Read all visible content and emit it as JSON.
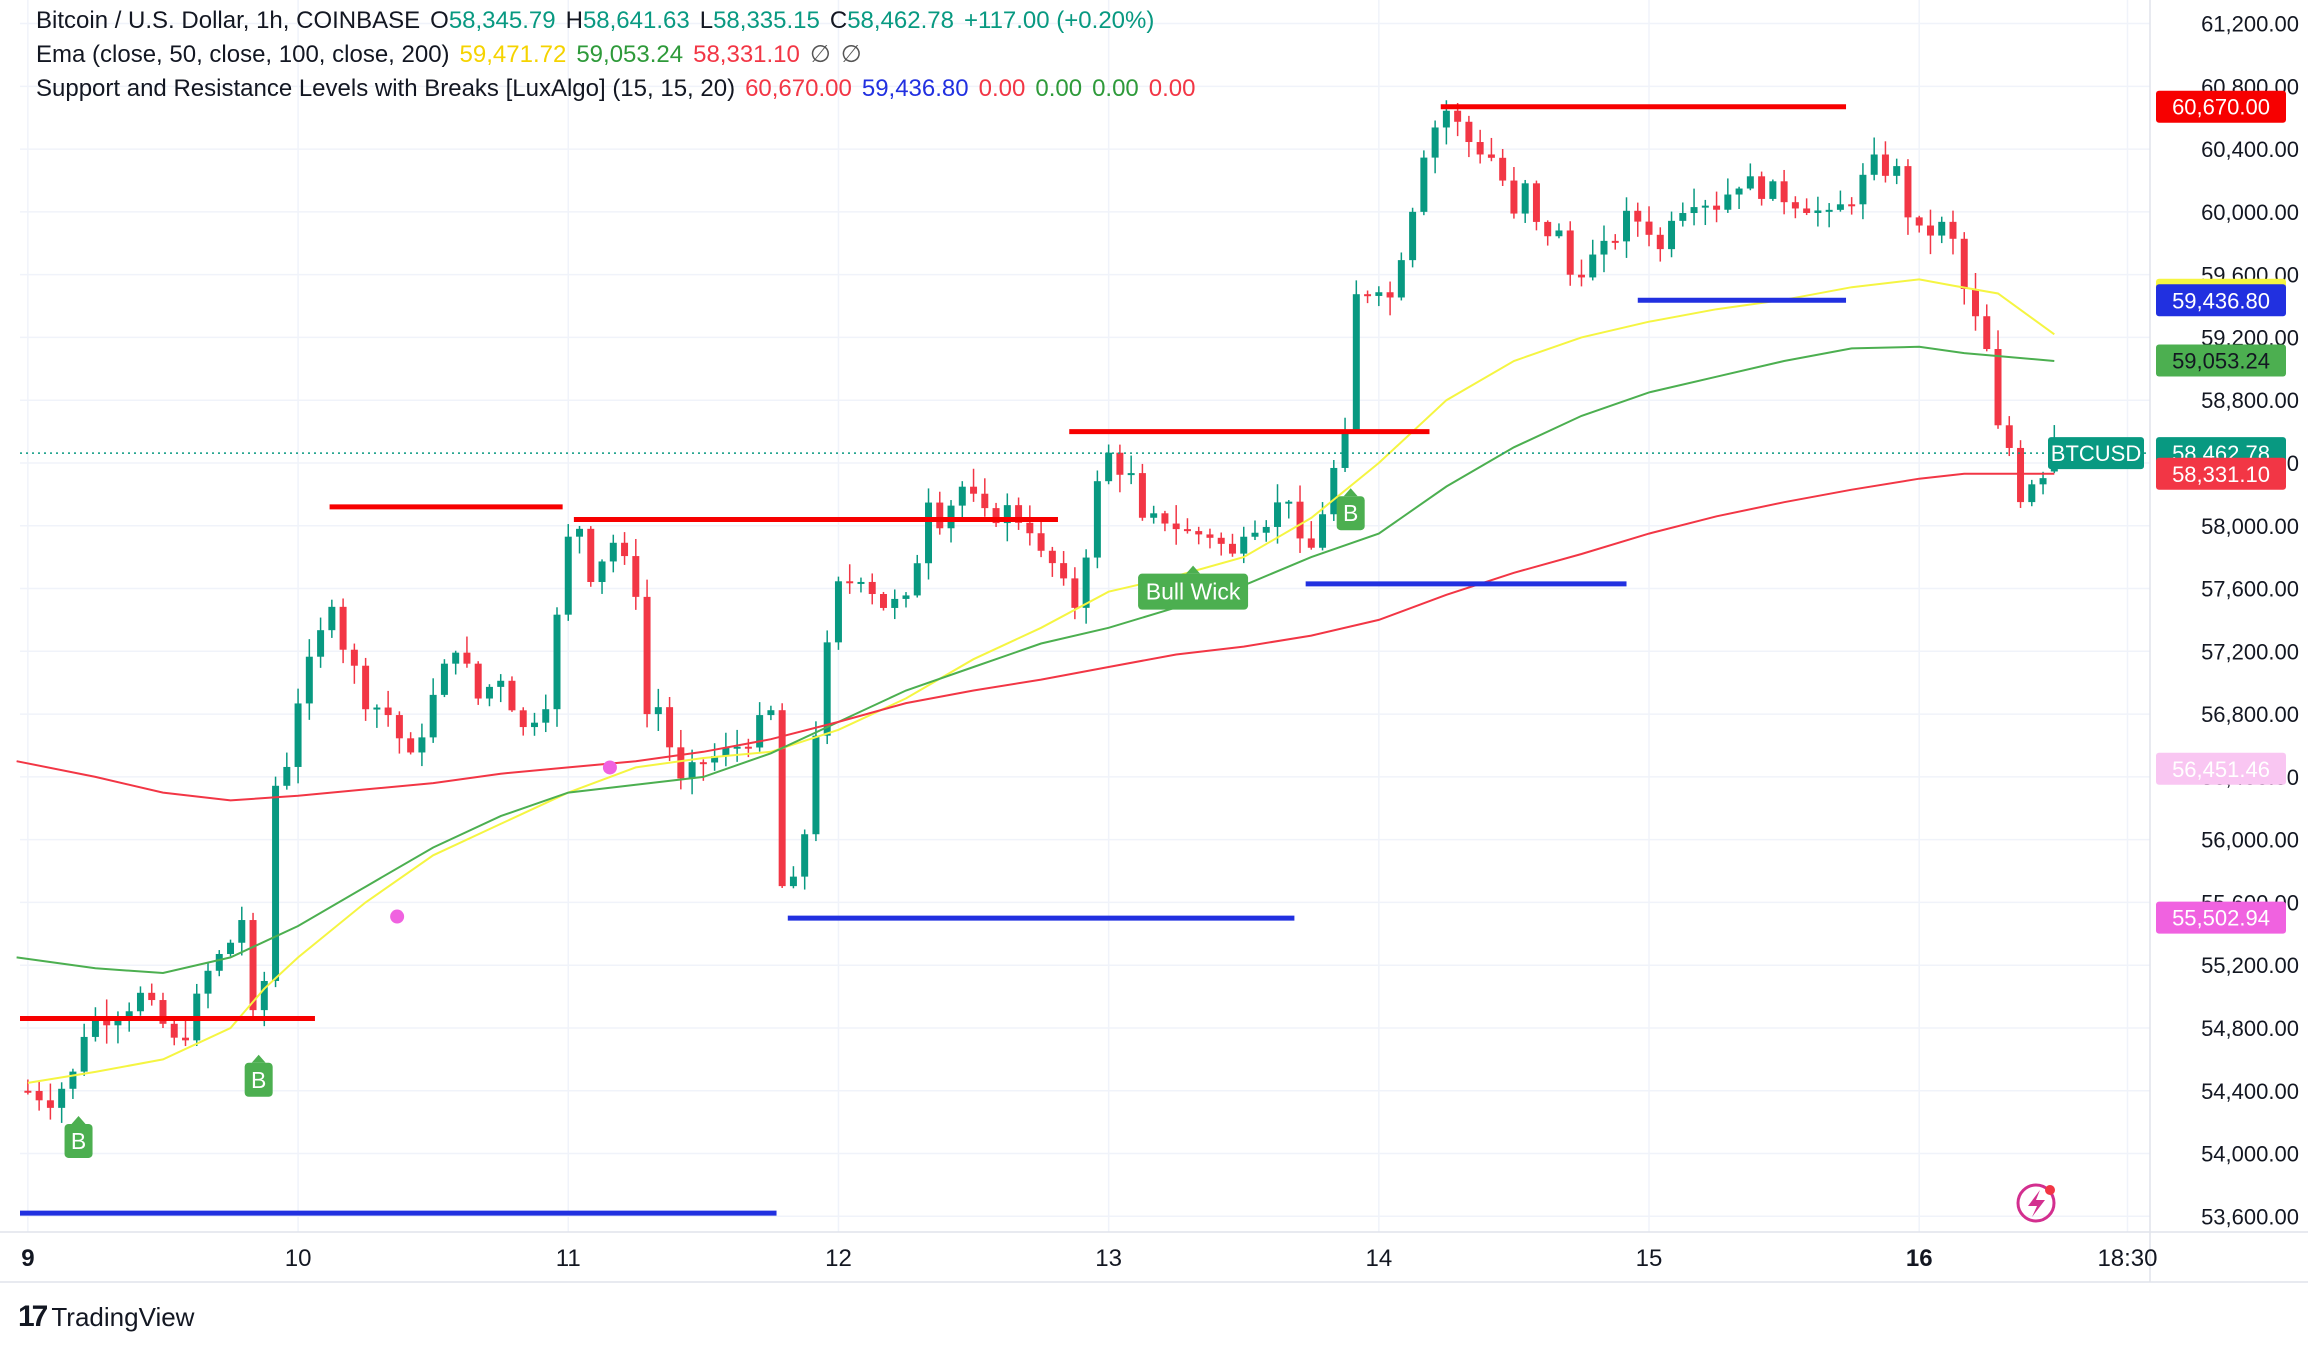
{
  "legend": {
    "symbol": "Bitcoin / U.S. Dollar, 1h, COINBASE",
    "ohlc": {
      "o_label": "O",
      "o_value": "58,345.79",
      "h_label": "H",
      "h_value": "58,641.63",
      "l_label": "L",
      "l_value": "58,335.15",
      "c_label": "C",
      "c_value": "58,462.78",
      "change": "+117.00 (+0.20%)"
    },
    "ema": {
      "label": "Ema (close, 50, close, 100, close, 200)",
      "v50": "59,471.72",
      "v100": "59,053.24",
      "v200": "58,331.10",
      "na1": "∅",
      "na2": "∅"
    },
    "sr": {
      "label": "Support and Resistance Levels with Breaks [LuxAlgo] (15, 15, 20)",
      "resistance": "60,670.00",
      "support": "59,436.80",
      "v3": "0.00",
      "v4": "0.00",
      "v5": "0.00",
      "v6": "0.00"
    }
  },
  "footer": {
    "logo": "TradingView"
  },
  "colors": {
    "up": "#089981",
    "down": "#f23645",
    "ema50": "#f5f542",
    "ema100": "#4caf50",
    "ema200": "#f23645",
    "resistance": "#f70000",
    "support": "#2130e0",
    "marker": "#4caf50",
    "pink": "#f062e0"
  },
  "chart_data": {
    "type": "candlestick",
    "title": "Bitcoin / U.S. Dollar, 1h, COINBASE",
    "y_ticks": [
      "61,200.00",
      "60,800.00",
      "60,400.00",
      "60,000.00",
      "59,600.00",
      "59,200.00",
      "58,800.00",
      "58,400.00",
      "58,000.00",
      "57,600.00",
      "57,200.00",
      "56,800.00",
      "56,400.00",
      "56,000.00",
      "55,600.00",
      "55,200.00",
      "54,800.00",
      "54,400.00",
      "54,000.00",
      "53,600.00"
    ],
    "y_tick_values": [
      61200,
      60800,
      60400,
      60000,
      59600,
      59200,
      58800,
      58400,
      58000,
      57600,
      57200,
      56800,
      56400,
      56000,
      55600,
      55200,
      54800,
      54400,
      54000,
      53600
    ],
    "ylim": [
      53500,
      61350
    ],
    "x_tick_labels": [
      "9",
      "10",
      "11",
      "12",
      "13",
      "14",
      "15",
      "16",
      "18:30"
    ],
    "x_tick_bold": [
      true,
      false,
      false,
      false,
      false,
      false,
      false,
      true,
      false
    ],
    "x_tick_hours": [
      0,
      24,
      48,
      72,
      96,
      120,
      144,
      168,
      186.5
    ],
    "xlim_hours": [
      -0.7,
      188.5
    ],
    "last_price": 58462.78,
    "price_tags": [
      {
        "label": "60,670.00",
        "value": 60670.0,
        "color": "#f70000",
        "text_color": "#ffffff"
      },
      {
        "label": "59,471.72",
        "value": 59471.72,
        "color": "#f5f542",
        "text_color": "#131722"
      },
      {
        "label": "59,436.80",
        "value": 59436.8,
        "color": "#2130e0",
        "text_color": "#ffffff"
      },
      {
        "label": "59,053.24",
        "value": 59053.24,
        "color": "#4caf50",
        "text_color": "#131722"
      },
      {
        "label": "58,462.78",
        "value": 58462.78,
        "color": "#089981",
        "text_color": "#ffffff"
      },
      {
        "label": "58,331.10",
        "value": 58331.1,
        "color": "#f23645",
        "text_color": "#ffffff"
      },
      {
        "label": "56,451.46",
        "value": 56451.46,
        "color": "#f9c6f2",
        "text_color": "#ffffff"
      },
      {
        "label": "55,502.94",
        "value": 55502.94,
        "color": "#f062e0",
        "text_color": "#ffffff"
      }
    ],
    "symbol_tag": "BTCUSD",
    "ema_series": [
      {
        "period": 50,
        "color": "#f5f542",
        "points": [
          [
            0,
            54450
          ],
          [
            6,
            54520
          ],
          [
            12,
            54600
          ],
          [
            18,
            54800
          ],
          [
            21,
            55050
          ],
          [
            24,
            55250
          ],
          [
            30,
            55600
          ],
          [
            36,
            55900
          ],
          [
            42,
            56100
          ],
          [
            48,
            56300
          ],
          [
            54,
            56460
          ],
          [
            60,
            56520
          ],
          [
            66,
            56560
          ],
          [
            72,
            56700
          ],
          [
            78,
            56900
          ],
          [
            84,
            57150
          ],
          [
            90,
            57350
          ],
          [
            96,
            57580
          ],
          [
            102,
            57680
          ],
          [
            108,
            57800
          ],
          [
            114,
            58050
          ],
          [
            120,
            58400
          ],
          [
            126,
            58800
          ],
          [
            132,
            59050
          ],
          [
            138,
            59200
          ],
          [
            144,
            59300
          ],
          [
            150,
            59380
          ],
          [
            156,
            59440
          ],
          [
            162,
            59520
          ],
          [
            168,
            59570
          ],
          [
            171,
            59530
          ],
          [
            175,
            59480
          ],
          [
            180,
            59220
          ]
        ]
      },
      {
        "period": 100,
        "color": "#4caf50",
        "points": [
          [
            -1,
            55250
          ],
          [
            6,
            55180
          ],
          [
            12,
            55150
          ],
          [
            18,
            55250
          ],
          [
            24,
            55450
          ],
          [
            30,
            55700
          ],
          [
            36,
            55950
          ],
          [
            42,
            56150
          ],
          [
            48,
            56300
          ],
          [
            54,
            56350
          ],
          [
            60,
            56400
          ],
          [
            66,
            56550
          ],
          [
            72,
            56750
          ],
          [
            78,
            56950
          ],
          [
            84,
            57100
          ],
          [
            90,
            57250
          ],
          [
            96,
            57350
          ],
          [
            102,
            57480
          ],
          [
            108,
            57620
          ],
          [
            114,
            57800
          ],
          [
            120,
            57950
          ],
          [
            126,
            58250
          ],
          [
            132,
            58500
          ],
          [
            138,
            58700
          ],
          [
            144,
            58850
          ],
          [
            150,
            58950
          ],
          [
            156,
            59050
          ],
          [
            162,
            59130
          ],
          [
            168,
            59140
          ],
          [
            172,
            59100
          ],
          [
            180,
            59050
          ]
        ]
      },
      {
        "period": 200,
        "color": "#f23645",
        "points": [
          [
            -1,
            56500
          ],
          [
            6,
            56400
          ],
          [
            12,
            56300
          ],
          [
            18,
            56250
          ],
          [
            24,
            56280
          ],
          [
            30,
            56320
          ],
          [
            36,
            56360
          ],
          [
            42,
            56420
          ],
          [
            48,
            56460
          ],
          [
            54,
            56500
          ],
          [
            60,
            56560
          ],
          [
            66,
            56640
          ],
          [
            72,
            56750
          ],
          [
            78,
            56870
          ],
          [
            84,
            56950
          ],
          [
            90,
            57020
          ],
          [
            96,
            57100
          ],
          [
            102,
            57180
          ],
          [
            108,
            57230
          ],
          [
            114,
            57300
          ],
          [
            120,
            57400
          ],
          [
            126,
            57560
          ],
          [
            132,
            57700
          ],
          [
            138,
            57820
          ],
          [
            144,
            57950
          ],
          [
            150,
            58060
          ],
          [
            156,
            58150
          ],
          [
            162,
            58230
          ],
          [
            168,
            58300
          ],
          [
            172,
            58331
          ],
          [
            180,
            58331
          ]
        ]
      }
    ],
    "ema_cross_dots": [
      [
        32.8,
        55510
      ],
      [
        51.7,
        56460
      ]
    ],
    "resistance_levels": [
      {
        "x0": -0.7,
        "x1": 25.5,
        "y": 54860
      },
      {
        "x0": 26.8,
        "x1": 47.5,
        "y": 58120
      },
      {
        "x0": 48.5,
        "x1": 91.5,
        "y": 58040
      },
      {
        "x0": 92.5,
        "x1": 124.5,
        "y": 58600
      },
      {
        "x0": 125.5,
        "x1": 161.5,
        "y": 60670
      }
    ],
    "support_levels": [
      {
        "x0": -0.7,
        "x1": 66.5,
        "y": 53620
      },
      {
        "x0": 67.5,
        "x1": 112.5,
        "y": 55500
      },
      {
        "x0": 113.5,
        "x1": 142,
        "y": 57630
      },
      {
        "x0": 143,
        "x1": 161.5,
        "y": 59436.8
      }
    ],
    "markers": [
      {
        "label": "B",
        "x": 4.5,
        "y": 54080
      },
      {
        "label": "B",
        "x": 20.5,
        "y": 54470
      },
      {
        "label": "B",
        "x": 117.5,
        "y": 58080
      },
      {
        "label": "Bull Wick",
        "x": 103.5,
        "y": 57580
      }
    ],
    "candle_anchors": [
      [
        0,
        54400
      ],
      [
        2,
        54350
      ],
      [
        4,
        54500
      ],
      [
        5,
        54780
      ],
      [
        6,
        54860
      ],
      [
        8,
        54900
      ],
      [
        10,
        55000
      ],
      [
        12,
        54820
      ],
      [
        13,
        54700
      ],
      [
        14,
        54780
      ],
      [
        16,
        55150
      ],
      [
        18,
        55350
      ],
      [
        19,
        55500
      ],
      [
        20,
        54850
      ],
      [
        21,
        55100
      ],
      [
        22,
        56350
      ],
      [
        23,
        56500
      ],
      [
        24,
        56900
      ],
      [
        26,
        57300
      ],
      [
        27,
        57550
      ],
      [
        28,
        57250
      ],
      [
        30,
        56900
      ],
      [
        32,
        56800
      ],
      [
        34,
        56500
      ],
      [
        36,
        56900
      ],
      [
        38,
        57250
      ],
      [
        40,
        56900
      ],
      [
        42,
        57050
      ],
      [
        44,
        56700
      ],
      [
        46,
        56900
      ],
      [
        47,
        57400
      ],
      [
        48,
        57900
      ],
      [
        49,
        58000
      ],
      [
        50,
        57700
      ],
      [
        51,
        57800
      ],
      [
        52,
        57900
      ],
      [
        54,
        57600
      ],
      [
        55,
        56800
      ],
      [
        56,
        56850
      ],
      [
        58,
        56350
      ],
      [
        60,
        56500
      ],
      [
        62,
        56550
      ],
      [
        64,
        56650
      ],
      [
        66,
        56800
      ],
      [
        67,
        55700
      ],
      [
        68,
        55700
      ],
      [
        69,
        56050
      ],
      [
        70,
        56700
      ],
      [
        71,
        57200
      ],
      [
        72,
        57600
      ],
      [
        74,
        57700
      ],
      [
        76,
        57500
      ],
      [
        78,
        57500
      ],
      [
        79,
        57800
      ],
      [
        80,
        58200
      ],
      [
        81,
        58050
      ],
      [
        83,
        58250
      ],
      [
        85,
        58050
      ],
      [
        87,
        58100
      ],
      [
        89,
        58000
      ],
      [
        90,
        57800
      ],
      [
        91,
        57750
      ],
      [
        92,
        57600
      ],
      [
        93,
        57500
      ],
      [
        94,
        57850
      ],
      [
        95,
        58250
      ],
      [
        96,
        58450
      ],
      [
        98,
        58300
      ],
      [
        99,
        58000
      ],
      [
        101,
        58050
      ],
      [
        103,
        57950
      ],
      [
        105,
        57950
      ],
      [
        107,
        57800
      ],
      [
        108,
        58000
      ],
      [
        110,
        58050
      ],
      [
        112,
        58200
      ],
      [
        113,
        57850
      ],
      [
        114,
        57850
      ],
      [
        115,
        58100
      ],
      [
        116,
        58350
      ],
      [
        117,
        58550
      ],
      [
        118,
        59450
      ],
      [
        119,
        59500
      ],
      [
        120,
        59550
      ],
      [
        121,
        59450
      ],
      [
        122,
        59750
      ],
      [
        123,
        60050
      ],
      [
        124,
        60400
      ],
      [
        125,
        60550
      ],
      [
        126,
        60650
      ],
      [
        128,
        60450
      ],
      [
        130,
        60350
      ],
      [
        131,
        60200
      ],
      [
        132,
        59950
      ],
      [
        133,
        60150
      ],
      [
        134,
        59900
      ],
      [
        136,
        59850
      ],
      [
        137,
        59600
      ],
      [
        138,
        59650
      ],
      [
        140,
        59750
      ],
      [
        142,
        59950
      ],
      [
        143,
        59950
      ],
      [
        144,
        59900
      ],
      [
        145,
        59750
      ],
      [
        146,
        60000
      ],
      [
        148,
        60100
      ],
      [
        150,
        60050
      ],
      [
        152,
        60200
      ],
      [
        154,
        60150
      ],
      [
        156,
        60100
      ],
      [
        158,
        60050
      ],
      [
        160,
        59950
      ],
      [
        162,
        60100
      ],
      [
        164,
        60300
      ],
      [
        166,
        60250
      ],
      [
        167,
        60000
      ],
      [
        168,
        59850
      ],
      [
        170,
        59900
      ],
      [
        171,
        59800
      ],
      [
        172,
        59500
      ],
      [
        173,
        59300
      ],
      [
        174,
        59100
      ],
      [
        175,
        58600
      ],
      [
        176,
        58500
      ],
      [
        177,
        58200
      ],
      [
        178,
        58300
      ],
      [
        179,
        58350
      ],
      [
        180,
        58463
      ]
    ],
    "hour_px": 7.6,
    "series": [
      {
        "name": "Ema 50",
        "value": 59471.72
      },
      {
        "name": "Ema 100",
        "value": 59053.24
      },
      {
        "name": "Ema 200",
        "value": 58331.1
      }
    ]
  }
}
